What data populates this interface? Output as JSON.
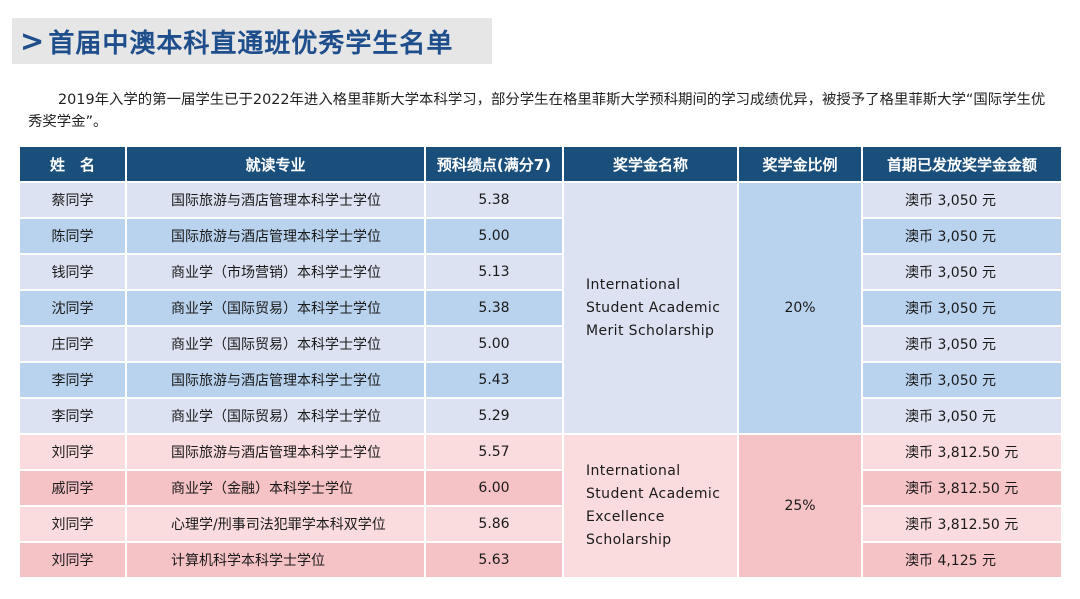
{
  "header": {
    "arrow": ">",
    "title": "首届中澳本科直通班优秀学生名单"
  },
  "intro": "2019年入学的第一届学生已于2022年进入格里菲斯大学本科学习，部分学生在格里菲斯大学预科期间的学习成绩优异，被授予了格里菲斯大学“国际学生优秀奖学金”。",
  "table": {
    "headers": [
      "姓　名",
      "就读专业",
      "预科绩点(满分7)",
      "奖学金名称",
      "奖学金比例",
      "首期已发放奖学金金额"
    ],
    "merit": {
      "scholarship_name": "International Student Academic Merit Scholarship",
      "ratio": "20%",
      "rows": [
        {
          "name": "蔡同学",
          "major": "国际旅游与酒店管理本科学士学位",
          "gpa": "5.38",
          "amount": "澳币 3,050 元"
        },
        {
          "name": "陈同学",
          "major": "国际旅游与酒店管理本科学士学位",
          "gpa": "5.00",
          "amount": "澳币 3,050 元"
        },
        {
          "name": "钱同学",
          "major": "商业学（市场营销）本科学士学位",
          "gpa": "5.13",
          "amount": "澳币 3,050 元"
        },
        {
          "name": "沈同学",
          "major": "商业学（国际贸易）本科学士学位",
          "gpa": "5.38",
          "amount": "澳币 3,050 元"
        },
        {
          "name": "庄同学",
          "major": "商业学（国际贸易）本科学士学位",
          "gpa": "5.00",
          "amount": "澳币 3,050 元"
        },
        {
          "name": "李同学",
          "major": "国际旅游与酒店管理本科学士学位",
          "gpa": "5.43",
          "amount": "澳币 3,050 元"
        },
        {
          "name": "李同学",
          "major": "商业学（国际贸易）本科学士学位",
          "gpa": "5.29",
          "amount": "澳币 3,050 元"
        }
      ]
    },
    "excellence": {
      "scholarship_name": "International Student Academic Excellence Scholarship",
      "ratio": "25%",
      "rows": [
        {
          "name": "刘同学",
          "major": "国际旅游与酒店管理本科学士学位",
          "gpa": "5.57",
          "amount": "澳币 3,812.50 元"
        },
        {
          "name": "戚同学",
          "major": "商业学（金融）本科学士学位",
          "gpa": "6.00",
          "amount": "澳币 3,812.50 元"
        },
        {
          "name": "刘同学",
          "major": "心理学/刑事司法犯罪学本科双学位",
          "gpa": "5.86",
          "amount": "澳币 3,812.50 元"
        },
        {
          "name": "刘同学",
          "major": "计算机科学本科学士学位",
          "gpa": "5.63",
          "amount": "澳币 4,125 元"
        }
      ]
    }
  }
}
